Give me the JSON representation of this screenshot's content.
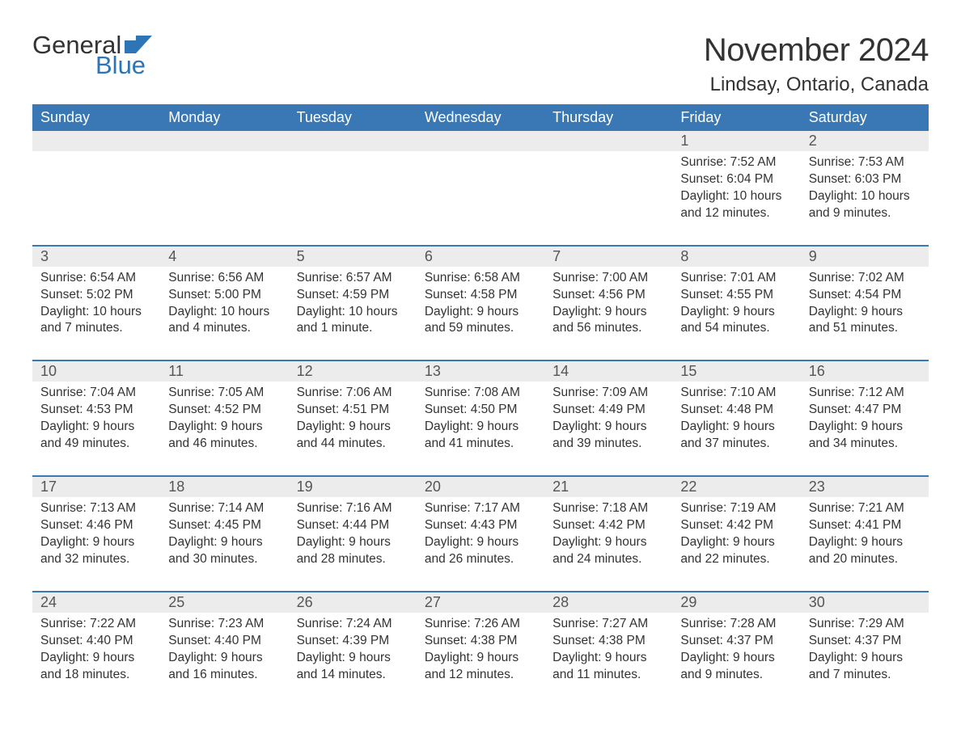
{
  "brand": {
    "general": "General",
    "blue": "Blue",
    "flag_color": "#2e75b6"
  },
  "title": "November 2024",
  "location": "Lindsay, Ontario, Canada",
  "colors": {
    "header_bg": "#3a78b5",
    "header_text": "#ffffff",
    "row_sep": "#3a78b5",
    "daynum_bg": "#ececec",
    "body_text": "#333333",
    "page_bg": "#ffffff"
  },
  "fonts": {
    "title_pt": 40,
    "location_pt": 24,
    "dayhead_pt": 18,
    "daynum_pt": 18,
    "body_pt": 15.5
  },
  "day_headers": [
    "Sunday",
    "Monday",
    "Tuesday",
    "Wednesday",
    "Thursday",
    "Friday",
    "Saturday"
  ],
  "weeks": [
    [
      {
        "num": "",
        "sunrise": "",
        "sunset": "",
        "daylight": ""
      },
      {
        "num": "",
        "sunrise": "",
        "sunset": "",
        "daylight": ""
      },
      {
        "num": "",
        "sunrise": "",
        "sunset": "",
        "daylight": ""
      },
      {
        "num": "",
        "sunrise": "",
        "sunset": "",
        "daylight": ""
      },
      {
        "num": "",
        "sunrise": "",
        "sunset": "",
        "daylight": ""
      },
      {
        "num": "1",
        "sunrise": "Sunrise: 7:52 AM",
        "sunset": "Sunset: 6:04 PM",
        "daylight": "Daylight: 10 hours and 12 minutes."
      },
      {
        "num": "2",
        "sunrise": "Sunrise: 7:53 AM",
        "sunset": "Sunset: 6:03 PM",
        "daylight": "Daylight: 10 hours and 9 minutes."
      }
    ],
    [
      {
        "num": "3",
        "sunrise": "Sunrise: 6:54 AM",
        "sunset": "Sunset: 5:02 PM",
        "daylight": "Daylight: 10 hours and 7 minutes."
      },
      {
        "num": "4",
        "sunrise": "Sunrise: 6:56 AM",
        "sunset": "Sunset: 5:00 PM",
        "daylight": "Daylight: 10 hours and 4 minutes."
      },
      {
        "num": "5",
        "sunrise": "Sunrise: 6:57 AM",
        "sunset": "Sunset: 4:59 PM",
        "daylight": "Daylight: 10 hours and 1 minute."
      },
      {
        "num": "6",
        "sunrise": "Sunrise: 6:58 AM",
        "sunset": "Sunset: 4:58 PM",
        "daylight": "Daylight: 9 hours and 59 minutes."
      },
      {
        "num": "7",
        "sunrise": "Sunrise: 7:00 AM",
        "sunset": "Sunset: 4:56 PM",
        "daylight": "Daylight: 9 hours and 56 minutes."
      },
      {
        "num": "8",
        "sunrise": "Sunrise: 7:01 AM",
        "sunset": "Sunset: 4:55 PM",
        "daylight": "Daylight: 9 hours and 54 minutes."
      },
      {
        "num": "9",
        "sunrise": "Sunrise: 7:02 AM",
        "sunset": "Sunset: 4:54 PM",
        "daylight": "Daylight: 9 hours and 51 minutes."
      }
    ],
    [
      {
        "num": "10",
        "sunrise": "Sunrise: 7:04 AM",
        "sunset": "Sunset: 4:53 PM",
        "daylight": "Daylight: 9 hours and 49 minutes."
      },
      {
        "num": "11",
        "sunrise": "Sunrise: 7:05 AM",
        "sunset": "Sunset: 4:52 PM",
        "daylight": "Daylight: 9 hours and 46 minutes."
      },
      {
        "num": "12",
        "sunrise": "Sunrise: 7:06 AM",
        "sunset": "Sunset: 4:51 PM",
        "daylight": "Daylight: 9 hours and 44 minutes."
      },
      {
        "num": "13",
        "sunrise": "Sunrise: 7:08 AM",
        "sunset": "Sunset: 4:50 PM",
        "daylight": "Daylight: 9 hours and 41 minutes."
      },
      {
        "num": "14",
        "sunrise": "Sunrise: 7:09 AM",
        "sunset": "Sunset: 4:49 PM",
        "daylight": "Daylight: 9 hours and 39 minutes."
      },
      {
        "num": "15",
        "sunrise": "Sunrise: 7:10 AM",
        "sunset": "Sunset: 4:48 PM",
        "daylight": "Daylight: 9 hours and 37 minutes."
      },
      {
        "num": "16",
        "sunrise": "Sunrise: 7:12 AM",
        "sunset": "Sunset: 4:47 PM",
        "daylight": "Daylight: 9 hours and 34 minutes."
      }
    ],
    [
      {
        "num": "17",
        "sunrise": "Sunrise: 7:13 AM",
        "sunset": "Sunset: 4:46 PM",
        "daylight": "Daylight: 9 hours and 32 minutes."
      },
      {
        "num": "18",
        "sunrise": "Sunrise: 7:14 AM",
        "sunset": "Sunset: 4:45 PM",
        "daylight": "Daylight: 9 hours and 30 minutes."
      },
      {
        "num": "19",
        "sunrise": "Sunrise: 7:16 AM",
        "sunset": "Sunset: 4:44 PM",
        "daylight": "Daylight: 9 hours and 28 minutes."
      },
      {
        "num": "20",
        "sunrise": "Sunrise: 7:17 AM",
        "sunset": "Sunset: 4:43 PM",
        "daylight": "Daylight: 9 hours and 26 minutes."
      },
      {
        "num": "21",
        "sunrise": "Sunrise: 7:18 AM",
        "sunset": "Sunset: 4:42 PM",
        "daylight": "Daylight: 9 hours and 24 minutes."
      },
      {
        "num": "22",
        "sunrise": "Sunrise: 7:19 AM",
        "sunset": "Sunset: 4:42 PM",
        "daylight": "Daylight: 9 hours and 22 minutes."
      },
      {
        "num": "23",
        "sunrise": "Sunrise: 7:21 AM",
        "sunset": "Sunset: 4:41 PM",
        "daylight": "Daylight: 9 hours and 20 minutes."
      }
    ],
    [
      {
        "num": "24",
        "sunrise": "Sunrise: 7:22 AM",
        "sunset": "Sunset: 4:40 PM",
        "daylight": "Daylight: 9 hours and 18 minutes."
      },
      {
        "num": "25",
        "sunrise": "Sunrise: 7:23 AM",
        "sunset": "Sunset: 4:40 PM",
        "daylight": "Daylight: 9 hours and 16 minutes."
      },
      {
        "num": "26",
        "sunrise": "Sunrise: 7:24 AM",
        "sunset": "Sunset: 4:39 PM",
        "daylight": "Daylight: 9 hours and 14 minutes."
      },
      {
        "num": "27",
        "sunrise": "Sunrise: 7:26 AM",
        "sunset": "Sunset: 4:38 PM",
        "daylight": "Daylight: 9 hours and 12 minutes."
      },
      {
        "num": "28",
        "sunrise": "Sunrise: 7:27 AM",
        "sunset": "Sunset: 4:38 PM",
        "daylight": "Daylight: 9 hours and 11 minutes."
      },
      {
        "num": "29",
        "sunrise": "Sunrise: 7:28 AM",
        "sunset": "Sunset: 4:37 PM",
        "daylight": "Daylight: 9 hours and 9 minutes."
      },
      {
        "num": "30",
        "sunrise": "Sunrise: 7:29 AM",
        "sunset": "Sunset: 4:37 PM",
        "daylight": "Daylight: 9 hours and 7 minutes."
      }
    ]
  ]
}
